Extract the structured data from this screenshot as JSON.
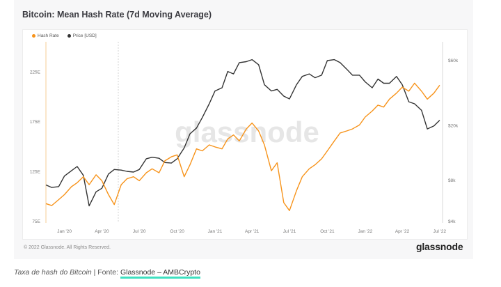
{
  "header": {
    "title": "Bitcoin: Mean Hash Rate (7d Moving Average)"
  },
  "legend": [
    {
      "label": "Hash Rate",
      "color": "#f7931a"
    },
    {
      "label": "Price [USD]",
      "color": "#333333"
    }
  ],
  "watermark": "glassnode",
  "footer": {
    "copyright": "© 2022 Glassnode. All Rights Reserved.",
    "logo": "glassnode"
  },
  "caption": {
    "italic": "Taxa de hash do Bitcoin",
    "separator": " | Fonte: ",
    "link": "Glassnode – AMBCrypto"
  },
  "chart_data": {
    "type": "line",
    "x_ticks": [
      "Jan '20",
      "Apr '20",
      "Jul '20",
      "Oct '20",
      "Jan '21",
      "Apr '21",
      "Jul '21",
      "Oct '21",
      "Jan '22",
      "Apr '22",
      "Jul '22"
    ],
    "left_axis": {
      "ticks": [
        "75E",
        "125E",
        "175E",
        "225E"
      ],
      "ylim": [
        75,
        250
      ],
      "unit": "EH/s"
    },
    "right_axis": {
      "ticks": [
        "$4k",
        "$8k",
        "$20k",
        "$60k"
      ],
      "scale": "log",
      "ylim": [
        4000,
        75000
      ]
    },
    "grid": false,
    "legend_position": "top-left",
    "series": [
      {
        "name": "Hash Rate",
        "axis": "left",
        "color": "#f7931a",
        "x": [
          "2019-12-01",
          "2019-12-15",
          "2020-01-01",
          "2020-01-15",
          "2020-02-01",
          "2020-02-15",
          "2020-03-01",
          "2020-03-15",
          "2020-04-01",
          "2020-04-15",
          "2020-05-01",
          "2020-05-15",
          "2020-06-01",
          "2020-06-15",
          "2020-07-01",
          "2020-07-15",
          "2020-08-01",
          "2020-08-15",
          "2020-09-01",
          "2020-09-15",
          "2020-10-01",
          "2020-10-15",
          "2020-11-01",
          "2020-11-15",
          "2020-12-01",
          "2020-12-15",
          "2021-01-01",
          "2021-01-15",
          "2021-02-01",
          "2021-02-15",
          "2021-03-01",
          "2021-03-15",
          "2021-04-01",
          "2021-04-15",
          "2021-05-01",
          "2021-05-15",
          "2021-06-01",
          "2021-06-15",
          "2021-07-01",
          "2021-07-15",
          "2021-08-01",
          "2021-08-15",
          "2021-09-01",
          "2021-09-15",
          "2021-10-01",
          "2021-10-15",
          "2021-11-01",
          "2021-11-15",
          "2021-12-01",
          "2021-12-15",
          "2022-01-01",
          "2022-01-15",
          "2022-02-01",
          "2022-02-15",
          "2022-03-01",
          "2022-03-15",
          "2022-04-01",
          "2022-04-15",
          "2022-05-01",
          "2022-05-15",
          "2022-06-01",
          "2022-06-15",
          "2022-07-01",
          "2022-07-15"
        ],
        "values": [
          93,
          91,
          97,
          102,
          110,
          114,
          120,
          112,
          122,
          116,
          102,
          92,
          112,
          118,
          120,
          116,
          124,
          128,
          124,
          136,
          140,
          142,
          120,
          132,
          148,
          146,
          152,
          150,
          148,
          158,
          162,
          156,
          168,
          174,
          166,
          152,
          126,
          134,
          94,
          86,
          106,
          120,
          128,
          132,
          138,
          146,
          156,
          164,
          166,
          168,
          172,
          180,
          186,
          192,
          190,
          198,
          204,
          210,
          206,
          214,
          206,
          198,
          204,
          212
        ]
      },
      {
        "name": "Price [USD]",
        "axis": "right",
        "color": "#333333",
        "x": [
          "2019-12-01",
          "2019-12-15",
          "2020-01-01",
          "2020-01-15",
          "2020-02-01",
          "2020-02-15",
          "2020-03-01",
          "2020-03-15",
          "2020-04-01",
          "2020-04-15",
          "2020-05-01",
          "2020-05-15",
          "2020-06-01",
          "2020-06-15",
          "2020-07-01",
          "2020-07-15",
          "2020-08-01",
          "2020-08-15",
          "2020-09-01",
          "2020-09-15",
          "2020-10-01",
          "2020-10-15",
          "2020-11-01",
          "2020-11-15",
          "2020-12-01",
          "2020-12-15",
          "2021-01-01",
          "2021-01-15",
          "2021-02-01",
          "2021-02-15",
          "2021-03-01",
          "2021-03-15",
          "2021-04-01",
          "2021-04-15",
          "2021-05-01",
          "2021-05-15",
          "2021-06-01",
          "2021-06-15",
          "2021-07-01",
          "2021-07-15",
          "2021-08-01",
          "2021-08-15",
          "2021-09-01",
          "2021-09-15",
          "2021-10-01",
          "2021-10-15",
          "2021-11-01",
          "2021-11-15",
          "2021-12-01",
          "2021-12-15",
          "2022-01-01",
          "2022-01-15",
          "2022-02-01",
          "2022-02-15",
          "2022-03-01",
          "2022-03-15",
          "2022-04-01",
          "2022-04-15",
          "2022-05-01",
          "2022-05-15",
          "2022-06-01",
          "2022-06-15",
          "2022-07-01",
          "2022-07-15"
        ],
        "values": [
          7400,
          7100,
          7200,
          8600,
          9400,
          10100,
          8700,
          5200,
          6600,
          7000,
          8900,
          9600,
          9500,
          9300,
          9200,
          9600,
          11500,
          11800,
          11600,
          10800,
          10700,
          11500,
          13800,
          17500,
          19300,
          23000,
          29000,
          36000,
          38000,
          50000,
          48000,
          58000,
          59000,
          61000,
          56000,
          40000,
          36000,
          37000,
          33000,
          31500,
          40000,
          46000,
          48000,
          45000,
          47000,
          60000,
          61000,
          58000,
          52000,
          47000,
          47000,
          42000,
          38000,
          44000,
          41000,
          41000,
          46000,
          40000,
          30000,
          29000,
          26000,
          19000,
          20000,
          22000
        ]
      }
    ]
  }
}
